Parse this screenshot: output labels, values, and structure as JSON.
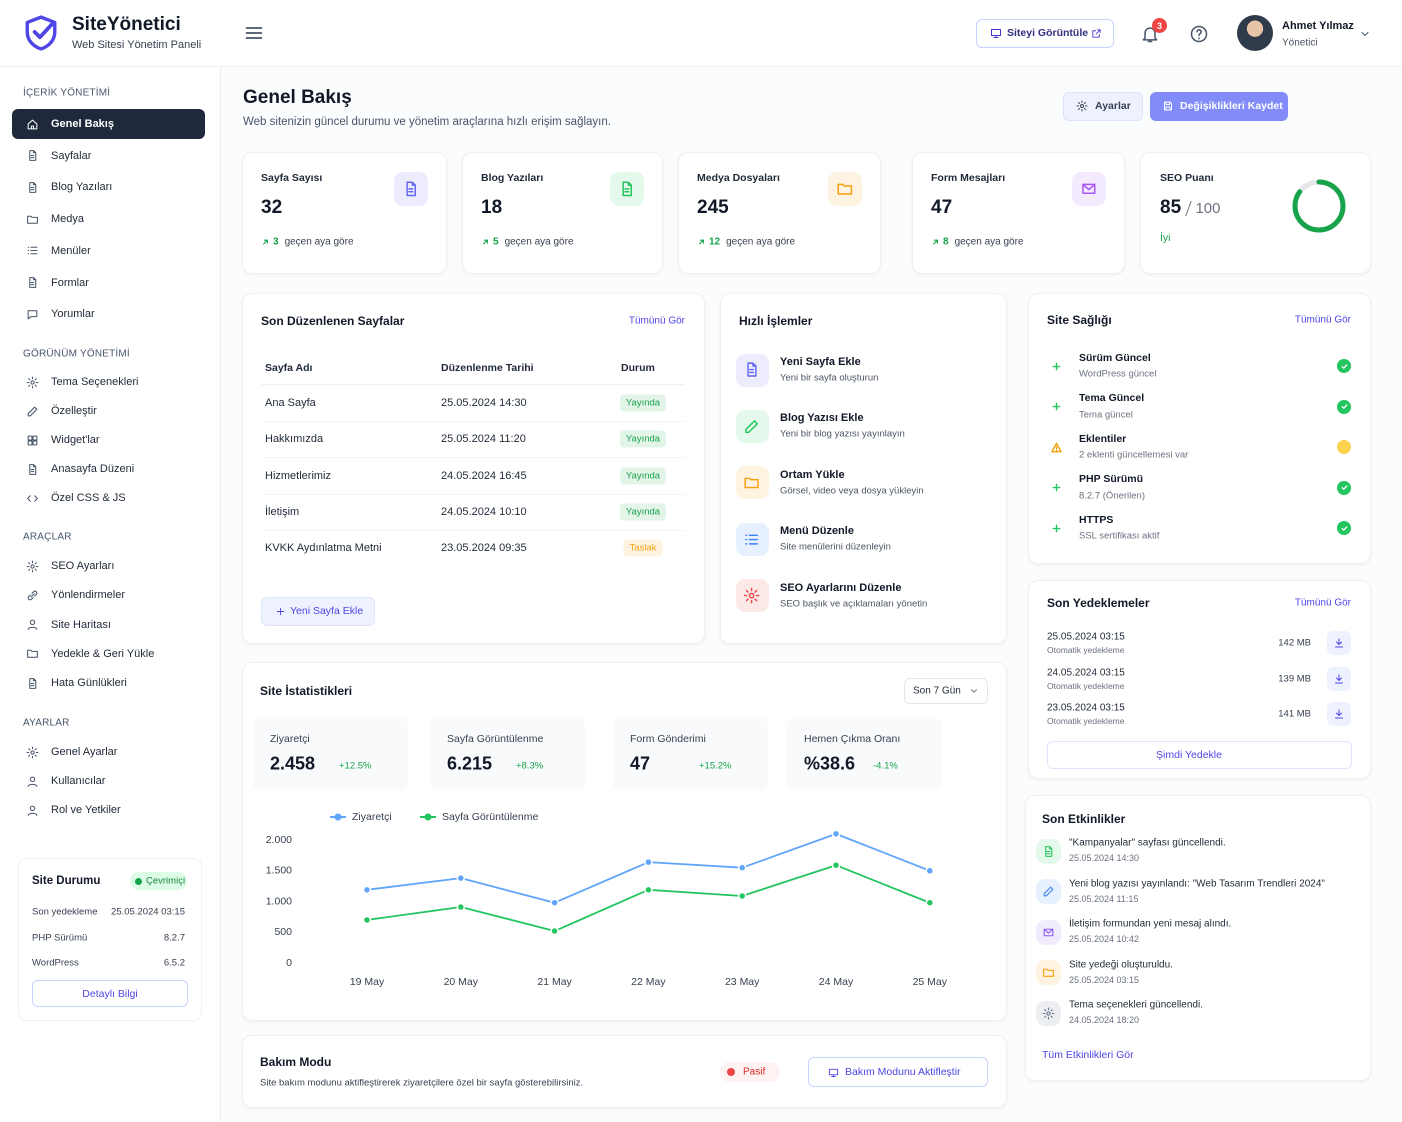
{
  "header": {
    "brand": "SiteYönetici",
    "tagline": "Web Sitesi Yönetim Paneli",
    "view_site": "Siteyi Görüntüle",
    "notifications": 3,
    "user": {
      "name": "Ahmet Yılmaz",
      "role": "Yönetici"
    }
  },
  "sidebar": {
    "sections": [
      {
        "title": "İÇERİK YÖNETİMİ",
        "items": [
          "Genel Bakış",
          "Sayfalar",
          "Blog Yazıları",
          "Medya",
          "Menüler",
          "Formlar",
          "Yorumlar"
        ]
      },
      {
        "title": "GÖRÜNÜM YÖNETİMİ",
        "items": [
          "Tema Seçenekleri",
          "Özelleştir",
          "Widget'lar",
          "Anasayfa Düzeni",
          "Özel CSS & JS"
        ]
      },
      {
        "title": "ARAÇLAR",
        "items": [
          "SEO Ayarları",
          "Yönlendirmeler",
          "Site Haritası",
          "Yedekle & Geri Yükle",
          "Hata Günlükleri"
        ]
      },
      {
        "title": "AYARLAR",
        "items": [
          "Genel Ayarlar",
          "Kullanıcılar",
          "Rol ve Yetkiler"
        ]
      }
    ],
    "status": {
      "title": "Site Durumu",
      "badge": "Çevrimiçi",
      "rows": [
        {
          "label": "Son yedekleme",
          "value": "25.05.2024 03:15"
        },
        {
          "label": "PHP Sürümü",
          "value": "8.2.7"
        },
        {
          "label": "WordPress",
          "value": "6.5.2"
        }
      ],
      "button": "Detaylı Bilgi"
    }
  },
  "page": {
    "title": "Genel Bakış",
    "subtitle": "Web sitenizin güncel durumu ve yönetim araçlarına hızlı erişim sağlayın.",
    "settings": "Ayarlar",
    "save": "Değişiklikleri Kaydet"
  },
  "stats": [
    {
      "label": "Sayfa Sayısı",
      "value": 32,
      "change": 3,
      "note": "geçen aya göre",
      "color": "#6366f1"
    },
    {
      "label": "Blog Yazıları",
      "value": 18,
      "change": 5,
      "note": "geçen aya göre",
      "color": "#22c55e"
    },
    {
      "label": "Medya Dosyaları",
      "value": 245,
      "change": 12,
      "note": "geçen aya göre",
      "color": "#f59e0b"
    },
    {
      "label": "Form Mesajları",
      "value": 47,
      "change": 8,
      "note": "geçen aya göre",
      "color": "#a855f7"
    }
  ],
  "seo": {
    "label": "SEO Puanı",
    "score": 85,
    "max": 100,
    "status": "İyi",
    "color": "#16a34a"
  },
  "recent_pages": {
    "title": "Son Düzenlenen Sayfalar",
    "link": "Tümünü Gör",
    "columns": [
      "Sayfa Adı",
      "Düzenlenme Tarihi",
      "Durum"
    ],
    "rows": [
      {
        "name": "Ana Sayfa",
        "date": "25.05.2024 14:30",
        "status": "Yayında",
        "color": "#16a34a"
      },
      {
        "name": "Hakkımızda",
        "date": "25.05.2024 11:20",
        "status": "Yayında",
        "color": "#16a34a"
      },
      {
        "name": "Hizmetlerimiz",
        "date": "24.05.2024 16:45",
        "status": "Yayında",
        "color": "#16a34a"
      },
      {
        "name": "İletişim",
        "date": "24.05.2024 10:10",
        "status": "Yayında",
        "color": "#16a34a"
      },
      {
        "name": "KVKK Aydınlatma Metni",
        "date": "23.05.2024 09:35",
        "status": "Taslak",
        "color": "#f59e0b"
      }
    ],
    "button": "Yeni Sayfa Ekle"
  },
  "quick_actions": {
    "title": "Hızlı İşlemler",
    "items": [
      {
        "title": "Yeni Sayfa Ekle",
        "desc": "Yeni bir sayfa oluşturun",
        "color": "#6366f1"
      },
      {
        "title": "Blog Yazısı Ekle",
        "desc": "Yeni bir blog yazısı yayınlayın",
        "color": "#22c55e"
      },
      {
        "title": "Ortam Yükle",
        "desc": "Görsel, video veya dosya yükleyin",
        "color": "#f59e0b"
      },
      {
        "title": "Menü Düzenle",
        "desc": "Site menülerini düzenleyin",
        "color": "#3b82f6"
      },
      {
        "title": "SEO Ayarlarını Düzenle",
        "desc": "SEO başlık ve açıklamaları yönetin",
        "color": "#ef4444"
      }
    ]
  },
  "site_health": {
    "title": "Site Sağlığı",
    "link": "Tümünü Gör",
    "items": [
      {
        "title": "Sürüm Güncel",
        "desc": "WordPress güncel",
        "ok": true
      },
      {
        "title": "Tema Güncel",
        "desc": "Tema güncel",
        "ok": true
      },
      {
        "title": "Eklentiler",
        "desc": "2 eklenti güncellemesi var",
        "ok": false
      },
      {
        "title": "PHP Sürümü",
        "desc": "8.2.7 (Önerilen)",
        "ok": true
      },
      {
        "title": "HTTPS",
        "desc": "SSL sertifikası aktif",
        "ok": true
      }
    ]
  },
  "backups": {
    "title": "Son Yedeklemeler",
    "link": "Tümünü Gör",
    "items": [
      {
        "date": "25.05.2024 03:15",
        "type": "Otomatik yedekleme",
        "size": "142 MB"
      },
      {
        "date": "24.05.2024 03:15",
        "type": "Otomatik yedekleme",
        "size": "139 MB"
      },
      {
        "date": "23.05.2024 03:15",
        "type": "Otomatik yedekleme",
        "size": "141 MB"
      }
    ],
    "button": "Şimdi Yedekle"
  },
  "activities": {
    "title": "Son Etkinlikler",
    "items": [
      {
        "text": "\"Kampanyalar\" sayfası güncellendi.",
        "time": "25.05.2024 14:30",
        "color": "#22c55e"
      },
      {
        "text": "Yeni blog yazısı yayınlandı: \"Web Tasarım Trendleri 2024\"",
        "time": "25.05.2024 11:15",
        "color": "#3b82f6"
      },
      {
        "text": "İletişim formundan yeni mesaj alındı.",
        "time": "25.05.2024 10:42",
        "color": "#8b5cf6"
      },
      {
        "text": "Site yedeği oluşturuldu.",
        "time": "25.05.2024 03:15",
        "color": "#f59e0b"
      },
      {
        "text": "Tema seçenekleri güncellendi.",
        "time": "24.05.2024 18:20",
        "color": "#64748b"
      }
    ],
    "link": "Tüm Etkinlikleri Gör"
  },
  "site_stats": {
    "title": "Site İstatistikleri",
    "range": "Son 7 Gün",
    "kpis": [
      {
        "label": "Ziyaretçi",
        "value": "2.458",
        "change": "+12.5%"
      },
      {
        "label": "Sayfa Görüntülenme",
        "value": "6.215",
        "change": "+8.3%"
      },
      {
        "label": "Form Gönderimi",
        "value": 47,
        "change": "+15.2%"
      },
      {
        "label": "Hemen Çıkma Oranı",
        "value": "%38.6",
        "change": "-4.1%"
      }
    ]
  },
  "chart_data": {
    "type": "line",
    "categories": [
      "19 May",
      "20 May",
      "21 May",
      "22 May",
      "23 May",
      "24 May",
      "25 May"
    ],
    "series": [
      {
        "name": "Ziyaretçi",
        "color": "#60a5fa",
        "values": [
          1190,
          1380,
          980,
          1640,
          1550,
          2100,
          1500
        ]
      },
      {
        "name": "Sayfa Görüntülenme",
        "color": "#22c55e",
        "values": [
          700,
          910,
          520,
          1190,
          1090,
          1590,
          980
        ]
      }
    ],
    "ylim": [
      0,
      2000
    ],
    "yticks": [
      0,
      500,
      {
        "value": 1000,
        "label": "1.000"
      },
      {
        "value": 1500,
        "label": "1.500"
      },
      {
        "value": 2000,
        "label": "2.000"
      }
    ],
    "grid": false,
    "legend": "top"
  },
  "maintenance": {
    "title": "Bakım Modu",
    "desc": "Site bakım modunu aktifleştirerek ziyaretçilere özel bir sayfa gösterebilirsiniz.",
    "status": "Pasif",
    "button": "Bakım Modunu Aktifleştir"
  }
}
